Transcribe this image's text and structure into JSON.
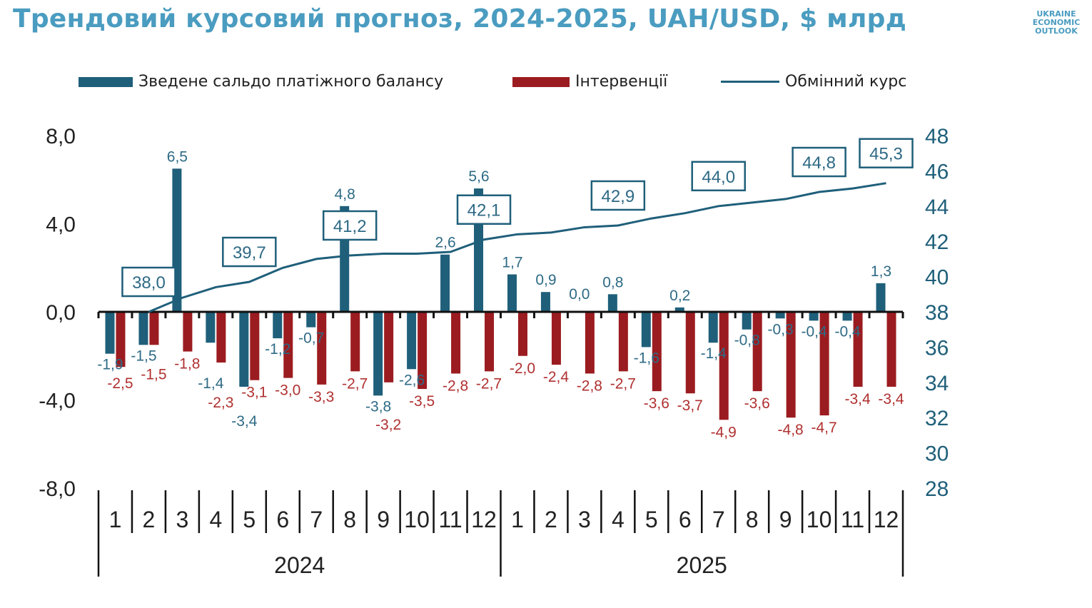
{
  "title": "Трендовий курсовий прогноз, 2024-2025, UAH/USD, $ млрд",
  "logo": "UKRAINE ECONOMIC OUTLOOK",
  "colors": {
    "balance": "#1f5f7a",
    "interventions": "#9b1c20",
    "rate": "#1f5f7a",
    "title": "#4a9cc0"
  },
  "chart_data": {
    "type": "bar+line",
    "title": "Трендовий курсовий прогноз, 2024-2025, UAH/USD, $ млрд",
    "legend_position": "top",
    "categories": [
      "1",
      "2",
      "3",
      "4",
      "5",
      "6",
      "7",
      "8",
      "9",
      "10",
      "11",
      "12",
      "1",
      "2",
      "3",
      "4",
      "5",
      "6",
      "7",
      "8",
      "9",
      "10",
      "11",
      "12"
    ],
    "years": [
      {
        "label": "2024",
        "months": 12
      },
      {
        "label": "2025",
        "months": 12
      }
    ],
    "left_axis": {
      "range": [
        -8,
        8
      ],
      "ticks": [
        "-8,0",
        "-4,0",
        "0,0",
        "4,0",
        "8,0"
      ],
      "tick_values": [
        -8,
        -4,
        0,
        4,
        8
      ]
    },
    "right_axis": {
      "range": [
        28,
        48
      ],
      "ticks": [
        "28",
        "30",
        "32",
        "34",
        "36",
        "38",
        "40",
        "42",
        "44",
        "46",
        "48"
      ],
      "tick_values": [
        28,
        30,
        32,
        34,
        36,
        38,
        40,
        42,
        44,
        46,
        48
      ]
    },
    "grid": false,
    "series": [
      {
        "name": "Зведене сальдо платіжного балансу",
        "type": "bar",
        "axis": "left",
        "values": [
          -1.9,
          -1.5,
          6.5,
          -1.4,
          -3.4,
          -1.2,
          -0.7,
          4.8,
          -3.8,
          -2.6,
          2.6,
          5.6,
          1.7,
          0.9,
          0.0,
          0.8,
          -1.6,
          0.2,
          -1.4,
          -0.8,
          -0.3,
          -0.4,
          -0.4,
          1.3
        ],
        "labels": [
          "-1,9",
          "-1,5",
          "6,5",
          "-1,4",
          "-3,4",
          "-1,2",
          "-0,7",
          "4,8",
          "-3,8",
          "-2,6",
          "2,6",
          "5,6",
          "1,7",
          "0,9",
          "0,0",
          "0,8",
          "-1,6",
          "0,2",
          "-1,4",
          "-0,8",
          "-0,3",
          "-0,4",
          "-0,4",
          "1,3"
        ]
      },
      {
        "name": "Інтервенції",
        "type": "bar",
        "axis": "left",
        "values": [
          -2.5,
          -1.5,
          -1.8,
          -2.3,
          -3.1,
          -3.0,
          -3.3,
          -2.7,
          -3.2,
          -3.5,
          -2.8,
          -2.7,
          -2.0,
          -2.4,
          -2.8,
          -2.7,
          -3.6,
          -3.7,
          -4.9,
          -3.6,
          -4.8,
          -4.7,
          -3.4,
          -3.4
        ],
        "labels": [
          "-2,5",
          "-1,5",
          "-1,8",
          "-2,3",
          "-3,1",
          "-3,0",
          "-3,3",
          "-2,7",
          "-3,2",
          "-3,5",
          "-2,8",
          "-2,7",
          "-2,0",
          "-2,4",
          "-2,8",
          "-2,7",
          "-3,6",
          "-3,7",
          "-4,9",
          "-3,6",
          "-4,8",
          "-4,7",
          "-3,4",
          "-3,4"
        ]
      },
      {
        "name": "Обмінний курс",
        "type": "line",
        "axis": "right",
        "values": [
          null,
          38.0,
          38.8,
          39.4,
          39.7,
          40.5,
          41.0,
          41.2,
          41.3,
          41.3,
          41.4,
          42.1,
          42.4,
          42.5,
          42.8,
          42.9,
          43.3,
          43.6,
          44.0,
          44.2,
          44.4,
          44.8,
          45.0,
          45.3
        ],
        "callouts": [
          {
            "index": 1,
            "label": "38,0"
          },
          {
            "index": 4,
            "label": "39,7"
          },
          {
            "index": 7,
            "label": "41,2"
          },
          {
            "index": 11,
            "label": "42,1"
          },
          {
            "index": 15,
            "label": "42,9"
          },
          {
            "index": 18,
            "label": "44,0"
          },
          {
            "index": 21,
            "label": "44,8"
          },
          {
            "index": 23,
            "label": "45,3"
          }
        ]
      }
    ]
  }
}
